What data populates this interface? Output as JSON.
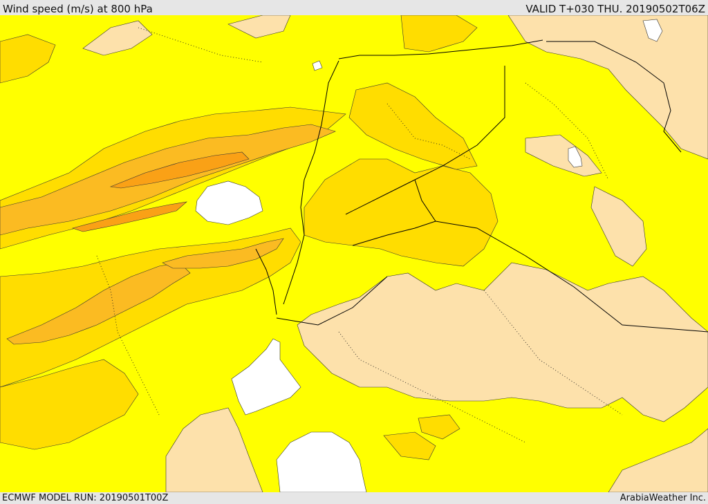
{
  "header": {
    "title": "Wind speed (m/s) at 800 hPa",
    "valid": "VALID T+030 THU. 20190502T06Z"
  },
  "footer": {
    "model_run": "ECMWF MODEL RUN: 20190501T00Z",
    "credit": "ArabiaWeather Inc."
  },
  "colors": {
    "band_very_light": "#fde1ab",
    "band_light": "#ffff00",
    "band_medium": "#ffdd00",
    "band_strong": "#fbbb22",
    "band_stronger": "#faa116",
    "no_shading": "#ffffff",
    "border": "#000000",
    "contour": "#333333"
  }
}
